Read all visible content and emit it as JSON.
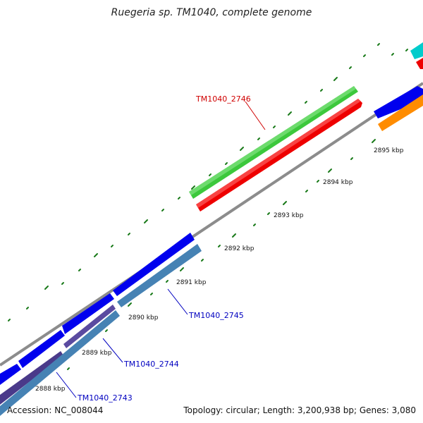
{
  "title": "Ruegeria sp. TM1040, complete genome",
  "footer": {
    "accession": "Accession: NC_008044",
    "summary": "Topology: circular; Length: 3,200,938 bp; Genes: 3,080"
  },
  "ticks": [
    "2888 kbp",
    "2889 kbp",
    "2890 kbp",
    "2891 kbp",
    "2892 kbp",
    "2893 kbp",
    "2894 kbp",
    "2895 kbp"
  ],
  "gene_labels": [
    {
      "text": "TM1040_2746",
      "color": "#d00000"
    },
    {
      "text": "TM1040_2745",
      "color": "#0000c0"
    },
    {
      "text": "TM1040_2744",
      "color": "#0000c0"
    },
    {
      "text": "TM1040_2743",
      "color": "#0000c0"
    }
  ],
  "colors": {
    "backbone": "#8c8c8c",
    "forward_cds": "#0000ee",
    "reverse_cds": "#4682b4",
    "rna": "#3cc83c",
    "gene_marker": "#ee0000",
    "orange_feature": "#ff8c00",
    "cyan_feature": "#00cccc",
    "tick_mark": "#1a7a1a"
  }
}
